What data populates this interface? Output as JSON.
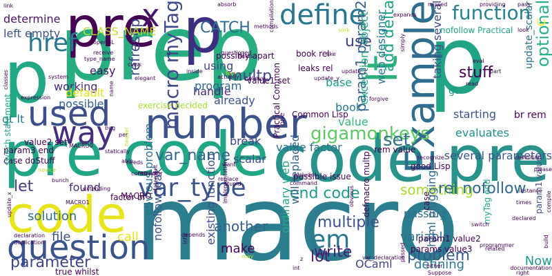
{
  "word_cloud": {
    "words": [
      {
        "text": "macro",
        "color": "#2c7e8e"
      },
      {
        "text": "code pre",
        "color": "#29928b"
      },
      {
        "text": "pre code",
        "color": "#21a685"
      },
      {
        "text": "prep",
        "color": "#27ad81"
      },
      {
        "text": "p",
        "color": "#22a884"
      },
      {
        "text": "p",
        "color": "#21a386"
      },
      {
        "text": "pre",
        "color": "#440154"
      },
      {
        "text": "p",
        "color": "#3c2f7f"
      },
      {
        "text": "code",
        "color": "#e8e41a"
      },
      {
        "text": "number",
        "color": "#3b528b"
      },
      {
        "text": "question",
        "color": "#3a538b"
      },
      {
        "text": "Example",
        "color": "#2e6d8e"
      },
      {
        "text": "used",
        "color": "#3d4e8a"
      },
      {
        "text": "way",
        "color": "#472f7d"
      },
      {
        "text": "x",
        "color": "#471164"
      },
      {
        "text": "define",
        "color": "#2a768e"
      },
      {
        "text": "function",
        "color": "#26828e"
      },
      {
        "text": "lt",
        "color": "#2db27d"
      },
      {
        "text": "gigamonkeys",
        "color": "#5ec962"
      },
      {
        "text": "var_type",
        "color": "#3a548c"
      },
      {
        "text": "var_name",
        "color": "#32648e"
      },
      {
        "text": "macro myTag",
        "color": "#3e4a89"
      },
      {
        "text": "optional",
        "color": "#2bb07f"
      },
      {
        "text": "parameter",
        "color": "#3f4788"
      },
      {
        "text": "end code",
        "color": "#1e9c89"
      },
      {
        "text": "em",
        "color": "#2a788e"
      },
      {
        "text": "set",
        "color": "#2d708e"
      },
      {
        "text": "href",
        "color": "#2a778e"
      },
      {
        "text": "CATCH",
        "color": "#2f6b8e"
      },
      {
        "text": "multp",
        "color": "#414487"
      },
      {
        "text": "let",
        "color": "#443983"
      },
      {
        "text": "use",
        "color": "#424086"
      },
      {
        "text": "add delta",
        "color": "#20a386"
      },
      {
        "text": "param1 param2",
        "color": "#355f8d"
      },
      {
        "text": "refreshp",
        "color": "#3e4989"
      },
      {
        "text": "CLASS_NAME",
        "color": "#b8de29"
      },
      {
        "text": "stuff",
        "color": "#440154"
      },
      {
        "text": "something",
        "color": "#a8db34"
      },
      {
        "text": "rel nofollow",
        "color": "#31688e"
      },
      {
        "text": "write",
        "color": "#482374"
      },
      {
        "text": "lot",
        "color": "#481f70"
      },
      {
        "text": "problem",
        "color": "#37598c"
      },
      {
        "text": "multiple",
        "color": "#3b528b"
      },
      {
        "text": "another",
        "color": "#33638d"
      },
      {
        "text": "variable",
        "color": "#2e6f8e"
      },
      {
        "text": "make",
        "color": "#440154"
      },
      {
        "text": "file",
        "color": "#3c508b"
      },
      {
        "text": "call",
        "color": "#dfe318"
      },
      {
        "text": "OCaml",
        "color": "#404688"
      },
      {
        "text": "defining",
        "color": "#2a768e"
      },
      {
        "text": "Now",
        "color": "#1f988b"
      },
      {
        "text": "solution",
        "color": "#2e6e8e"
      },
      {
        "text": "found",
        "color": "#472c7a"
      },
      {
        "text": "value factor",
        "color": "#2d718e"
      },
      {
        "text": "break",
        "color": "#424186"
      },
      {
        "text": "scalar",
        "color": "#3e4c8a"
      },
      {
        "text": "already",
        "color": "#3a548c"
      },
      {
        "text": "handle",
        "color": "#472c7a"
      },
      {
        "text": "program",
        "color": "#31678e"
      },
      {
        "text": "using",
        "color": "#3f4889"
      },
      {
        "text": "working",
        "color": "#4a2b7e"
      },
      {
        "text": "possible",
        "color": "#34618d"
      },
      {
        "text": "easy",
        "color": "#481467"
      },
      {
        "text": "default",
        "color": "#dfe318"
      },
      {
        "text": "determine",
        "color": "#481467"
      },
      {
        "text": "left empty",
        "color": "#3a548c"
      },
      {
        "text": "gt lt",
        "color": "#26818e"
      },
      {
        "text": "evaluates",
        "color": "#21918c"
      },
      {
        "text": "starting",
        "color": "#3a548c"
      },
      {
        "text": "several parameters",
        "color": "#3a548c"
      },
      {
        "text": "value",
        "color": "#35b779"
      },
      {
        "text": "book",
        "color": "#2a768e"
      },
      {
        "text": "base",
        "color": "#1f9e89"
      },
      {
        "text": "C",
        "color": "#fde725"
      },
      {
        "text": "passing",
        "color": "#2e6e8e"
      },
      {
        "text": "exception_object",
        "color": "#27ad81"
      },
      {
        "text": "ordinary web",
        "color": "#22a785"
      },
      {
        "text": "will replaced",
        "color": "#33638d"
      },
      {
        "text": "web designer",
        "color": "#287c8e"
      },
      {
        "text": "taking several",
        "color": "#3d4e8a"
      },
      {
        "text": "html plugging",
        "color": "#31688e"
      },
      {
        "text": "existing function",
        "color": "#3b528b"
      },
      {
        "text": "nofollow leak",
        "color": "#3a548c"
      },
      {
        "text": "obvious problem",
        "color": "#2c728e"
      },
      {
        "text": "update_scalar",
        "color": "#2c738e"
      },
      {
        "text": "gt",
        "color": "#1f998a"
      },
      {
        "text": "br rem",
        "color": "#440154"
      },
      {
        "text": "value1 set",
        "color": "#440154"
      },
      {
        "text": "book rel",
        "color": "#440154"
      },
      {
        "text": "leaks rel",
        "color": "#440154"
      },
      {
        "text": "rem value",
        "color": "#440154"
      },
      {
        "text": "good Lisp",
        "color": "#440154"
      },
      {
        "text": "possible issue",
        "color": "#440154"
      },
      {
        "text": "Common Lisp",
        "color": "#440154"
      },
      {
        "text": "Practical Common",
        "color": "#440154"
      },
      {
        "text": "value2 set",
        "color": "#440154"
      },
      {
        "text": "param3 end",
        "color": "#440154"
      },
      {
        "text": "case doStuff",
        "color": "#440154"
      },
      {
        "text": "true whilst",
        "color": "#440154"
      },
      {
        "text": "factor br",
        "color": "#440154"
      },
      {
        "text": "MACRO",
        "color": "#440154"
      },
      {
        "text": "param1 value2",
        "color": "#440154"
      },
      {
        "text": "params value3",
        "color": "#440154"
      },
      {
        "text": "myTag end",
        "color": "#22a785"
      },
      {
        "text": "param1 value",
        "color": "#3b528b"
      },
      {
        "text": "switch statement",
        "color": "#22a785"
      },
      {
        "text": "exercise decided",
        "color": "#a8db34"
      },
      {
        "text": "possibly apart",
        "color": "#440154"
      },
      {
        "text": "nofollow Practical",
        "color": "#22a785"
      },
      {
        "text": "defmacro multp",
        "color": "#440154"
      },
      {
        "text": "case",
        "color": "#440154"
      },
      {
        "text": "one",
        "color": "#440154"
      },
      {
        "text": "link",
        "color": "#440154"
      },
      {
        "text": "absorb",
        "color": "#440154"
      },
      {
        "text": "missed",
        "color": "#440154"
      },
      {
        "text": "providing",
        "color": "#440154"
      },
      {
        "text": "pass",
        "color": "#440154"
      },
      {
        "text": "methods",
        "color": "#440154"
      },
      {
        "text": "compilation",
        "color": "#440154"
      },
      {
        "text": "expands",
        "color": "#440154"
      },
      {
        "text": "look",
        "color": "#440154"
      },
      {
        "text": "sork",
        "color": "#b8de29"
      },
      {
        "text": "like",
        "color": "#440154"
      },
      {
        "text": "simply",
        "color": "#440154"
      },
      {
        "text": "openGL",
        "color": "#440154"
      },
      {
        "text": "receive",
        "color": "#440154"
      },
      {
        "text": "type_name",
        "color": "#440154"
      },
      {
        "text": "classes",
        "color": "#440154"
      },
      {
        "text": "system",
        "color": "#440154"
      },
      {
        "text": "expression",
        "color": "#440154"
      },
      {
        "text": "name",
        "color": "#440154"
      },
      {
        "text": "class",
        "color": "#440154"
      },
      {
        "text": "elegant",
        "color": "#440154"
      },
      {
        "text": "fields",
        "color": "#440154"
      },
      {
        "text": "believe",
        "color": "#440154"
      },
      {
        "text": "feel",
        "color": "#b8de29"
      },
      {
        "text": "actually",
        "color": "#440154"
      },
      {
        "text": "inside",
        "color": "#440154"
      },
      {
        "text": "update_z",
        "color": "#440154"
      },
      {
        "text": "update_y",
        "color": "#440154"
      },
      {
        "text": "forgive",
        "color": "#440154"
      },
      {
        "text": "eval",
        "color": "#440154"
      },
      {
        "text": "part",
        "color": "#440154"
      },
      {
        "text": "read",
        "color": "#440154"
      },
      {
        "text": "questioned",
        "color": "#440154"
      },
      {
        "text": "bug",
        "color": "#440154"
      },
      {
        "text": "per",
        "color": "#440154"
      },
      {
        "text": "able",
        "color": "#440154"
      },
      {
        "text": "needs",
        "color": "#440154"
      },
      {
        "text": "regular",
        "color": "#440154"
      },
      {
        "text": "header",
        "color": "#b8de29"
      },
      {
        "text": "statically",
        "color": "#440154"
      },
      {
        "text": "novice",
        "color": "#b8de29"
      },
      {
        "text": "bunch",
        "color": "#440154"
      },
      {
        "text": "update_x",
        "color": "#440154"
      },
      {
        "text": "declaration",
        "color": "#440154"
      },
      {
        "text": "duplication",
        "color": "#440154"
      },
      {
        "text": "constructor",
        "color": "#440154"
      },
      {
        "text": "depends",
        "color": "#440154"
      },
      {
        "text": "info",
        "color": "#440154"
      },
      {
        "text": "replace",
        "color": "#440154"
      },
      {
        "text": "stupid",
        "color": "#440154"
      },
      {
        "text": "want",
        "color": "#440154"
      },
      {
        "text": "may",
        "color": "#b8de29"
      },
      {
        "text": "int",
        "color": "#440154"
      },
      {
        "text": "var_declaration",
        "color": "#440154"
      },
      {
        "text": "include",
        "color": "#440154"
      },
      {
        "text": "command",
        "color": "#440154"
      },
      {
        "text": "obvious",
        "color": "#440154"
      },
      {
        "text": "recognize",
        "color": "#440154"
      },
      {
        "text": "definition",
        "color": "#440154"
      },
      {
        "text": "please",
        "color": "#440154"
      },
      {
        "text": "times",
        "color": "#440154"
      },
      {
        "text": "instance",
        "color": "#440154"
      },
      {
        "text": "declared",
        "color": "#440154"
      },
      {
        "text": "switch",
        "color": "#440154"
      },
      {
        "text": "programmer",
        "color": "#440154"
      },
      {
        "text": "related",
        "color": "#440154"
      },
      {
        "text": "either",
        "color": "#440154"
      },
      {
        "text": "Suppose",
        "color": "#440154"
      },
      {
        "text": "documentation",
        "color": "#440154"
      },
      {
        "text": "right",
        "color": "#440154"
      },
      {
        "text": "compile",
        "color": "#440154"
      },
      {
        "text": "build",
        "color": "#440154"
      },
      {
        "text": "passed",
        "color": "#440154"
      },
      {
        "text": "statement",
        "color": "#440154"
      },
      {
        "text": "implementation",
        "color": "#440154"
      },
      {
        "text": "extending",
        "color": "#440154"
      },
      {
        "text": "z",
        "color": "#440154"
      },
      {
        "text": "x",
        "color": "#440154"
      },
      {
        "text": "MACRO0",
        "color": "#440154"
      },
      {
        "text": "MACRO1",
        "color": "#440154"
      }
    ]
  }
}
